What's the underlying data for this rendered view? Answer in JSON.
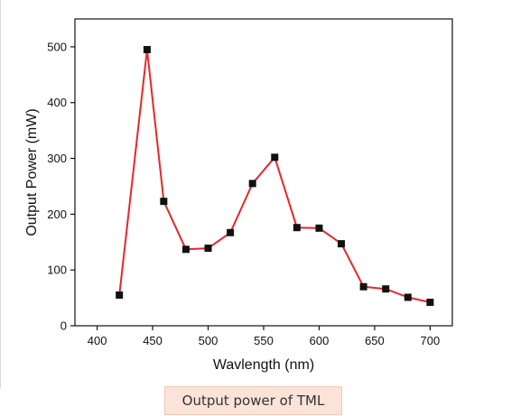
{
  "chart_data": {
    "type": "line",
    "xlabel": "Wavlength (nm)",
    "ylabel": "Output Power (mW)",
    "xlim": [
      380,
      720
    ],
    "ylim": [
      0,
      550
    ],
    "xticks": [
      400,
      450,
      500,
      550,
      600,
      650,
      700
    ],
    "yticks": [
      0,
      100,
      200,
      300,
      400,
      500
    ],
    "grid": false,
    "marker": "square",
    "colors": {
      "line": "#e8262a",
      "marker": "#111111",
      "axis": "#111111"
    },
    "series": [
      {
        "x": [
          420,
          445,
          460,
          480,
          500,
          520,
          540,
          560,
          580,
          600,
          620,
          640,
          660,
          680,
          700
        ],
        "y": [
          55,
          495,
          223,
          137,
          139,
          167,
          255,
          302,
          176,
          175,
          147,
          70,
          66,
          51,
          42
        ]
      }
    ]
  },
  "caption": "Output power of TML"
}
